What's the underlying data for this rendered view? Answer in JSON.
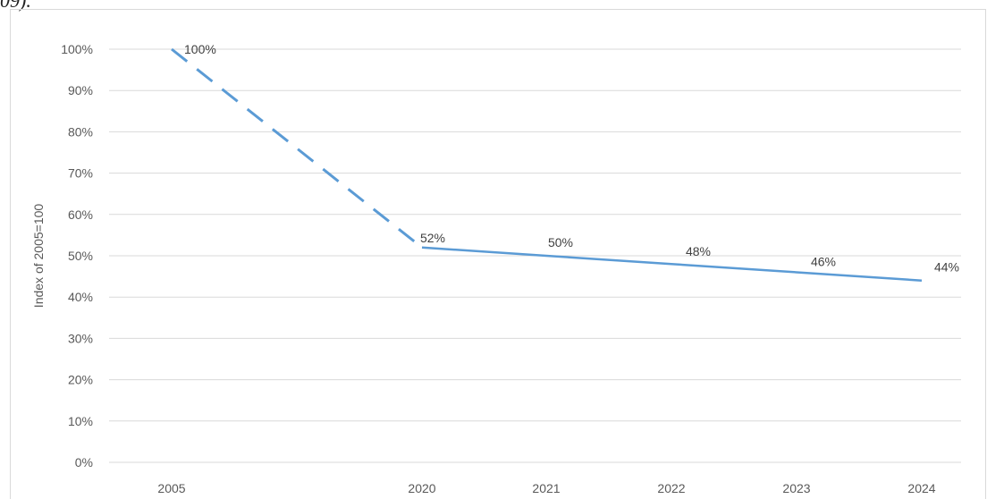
{
  "page": {
    "fragment_text": "09)."
  },
  "chart_data": {
    "type": "line",
    "title": "",
    "xlabel": "",
    "ylabel": "Index of 2005=100",
    "categories": [
      "2005",
      "2020",
      "2021",
      "2022",
      "2023",
      "2024"
    ],
    "series": [
      {
        "values": [
          100,
          52,
          50,
          48,
          46,
          44
        ],
        "data_labels": [
          "100%",
          "52%",
          "50%",
          "48%",
          "46%",
          "44%"
        ],
        "color": "#5b9bd5",
        "dashed_segments": [
          [
            0,
            1
          ]
        ]
      }
    ],
    "ylim": [
      0,
      100
    ],
    "y_ticks": [
      0,
      10,
      20,
      30,
      40,
      50,
      60,
      70,
      80,
      90,
      100
    ],
    "y_tick_labels": [
      "0%",
      "10%",
      "20%",
      "30%",
      "40%",
      "50%",
      "60%",
      "70%",
      "80%",
      "90%",
      "100%"
    ],
    "grid": true,
    "gridline_color": "#d9d9d9",
    "legend": "none"
  }
}
